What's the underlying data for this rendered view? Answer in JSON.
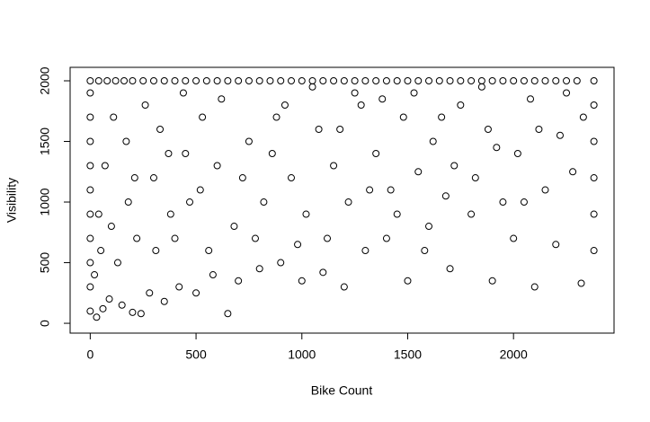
{
  "chart_data": {
    "type": "scatter",
    "x_label": "Bike Count",
    "y_label": "Visibility",
    "xlim": [
      -95,
      2475
    ],
    "ylim": [
      -81,
      2111
    ],
    "xticks": [
      0,
      500,
      1000,
      1500,
      2000
    ],
    "yticks": [
      0,
      500,
      1000,
      1500,
      2000
    ],
    "color": "#000000",
    "x": [
      0,
      40,
      80,
      120,
      160,
      200,
      250,
      300,
      350,
      400,
      450,
      500,
      550,
      600,
      650,
      700,
      750,
      800,
      850,
      900,
      950,
      1000,
      1050,
      1100,
      1150,
      1200,
      1250,
      1300,
      1350,
      1400,
      1450,
      1500,
      1550,
      1600,
      1650,
      1700,
      1750,
      1800,
      1850,
      1900,
      1950,
      2000,
      2050,
      2100,
      2150,
      2200,
      2250,
      2300,
      2380,
      0,
      0,
      0,
      0,
      0,
      0,
      0,
      0,
      0,
      0,
      2380,
      2380,
      2380,
      2380,
      2380,
      30,
      60,
      90,
      150,
      200,
      240,
      280,
      350,
      420,
      500,
      580,
      650,
      700,
      800,
      900,
      1000,
      1100,
      1200,
      1300,
      1400,
      1500,
      1600,
      1700,
      1800,
      1900,
      2000,
      2100,
      2200,
      2320,
      50,
      100,
      180,
      220,
      300,
      380,
      450,
      520,
      600,
      680,
      750,
      820,
      880,
      950,
      1020,
      1080,
      1150,
      1220,
      1280,
      1350,
      1420,
      1480,
      1550,
      1620,
      1680,
      1750,
      1820,
      1880,
      1950,
      2020,
      2080,
      2150,
      2220,
      2280,
      2330,
      20,
      40,
      70,
      110,
      130,
      170,
      210,
      260,
      310,
      330,
      370,
      400,
      440,
      470,
      530,
      560,
      620,
      720,
      780,
      860,
      920,
      980,
      1050,
      1120,
      1180,
      1250,
      1320,
      1380,
      1450,
      1530,
      1580,
      1660,
      1720,
      1850,
      1920,
      2050,
      2120,
      2250
    ],
    "values": [
      2000,
      2000,
      2000,
      2000,
      2000,
      2000,
      2000,
      2000,
      2000,
      2000,
      2000,
      2000,
      2000,
      2000,
      2000,
      2000,
      2000,
      2000,
      2000,
      2000,
      2000,
      2000,
      2000,
      2000,
      2000,
      2000,
      2000,
      2000,
      2000,
      2000,
      2000,
      2000,
      2000,
      2000,
      2000,
      2000,
      2000,
      2000,
      2000,
      2000,
      2000,
      2000,
      2000,
      2000,
      2000,
      2000,
      2000,
      2000,
      2000,
      100,
      300,
      500,
      700,
      900,
      1100,
      1300,
      1500,
      1700,
      1900,
      600,
      900,
      1200,
      1500,
      1800,
      50,
      120,
      200,
      150,
      90,
      80,
      250,
      180,
      300,
      250,
      400,
      80,
      350,
      450,
      500,
      350,
      420,
      300,
      600,
      700,
      350,
      800,
      450,
      900,
      350,
      700,
      300,
      650,
      330,
      600,
      800,
      1000,
      700,
      1200,
      900,
      1400,
      1100,
      1300,
      800,
      1500,
      1000,
      1700,
      1200,
      900,
      1600,
      1300,
      1000,
      1800,
      1400,
      1100,
      1700,
      1250,
      1500,
      1050,
      1800,
      1200,
      1600,
      1000,
      1400,
      1850,
      1100,
      1550,
      1250,
      1700,
      400,
      900,
      1300,
      1700,
      500,
      1500,
      1200,
      1800,
      600,
      1600,
      1400,
      700,
      1900,
      1000,
      1700,
      600,
      1850,
      1200,
      700,
      1400,
      1800,
      650,
      1950,
      700,
      1600,
      1900,
      1100,
      1850,
      900,
      1900,
      600,
      1700,
      1300,
      1950,
      1450,
      1000,
      1600,
      1900
    ]
  }
}
